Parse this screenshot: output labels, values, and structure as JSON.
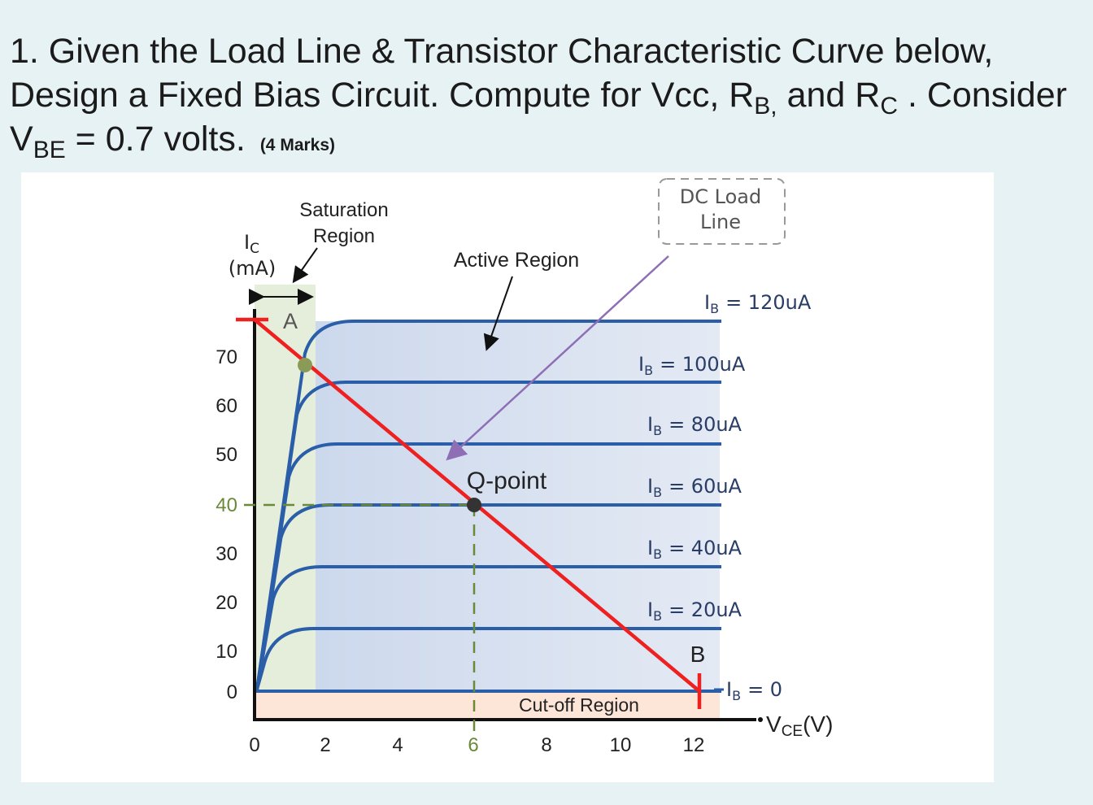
{
  "question": {
    "line1": "1. Given the Load Line & Transistor Characteristic Curve below,",
    "line2_a": "Design a Fixed Bias Circuit. Compute for Vcc, R",
    "line2_sub_b": "B,",
    "line2_b": " and R",
    "line2_sub_c": "C",
    "line2_c": " . Consider",
    "line3_a": "V",
    "line3_sub": "BE",
    "line3_b": " = 0.7 volts.",
    "marks": "(4 Marks)"
  },
  "figure": {
    "saturation": [
      "Saturation",
      "Region"
    ],
    "ic_symbol": "I",
    "ic_sub": "C",
    "ic_unit": "(mA)",
    "point_a": "A",
    "active_region": "Active Region",
    "dc_load_line": [
      "DC Load",
      "Line"
    ],
    "ib_symbol": "I",
    "ib_sub": "B",
    "curve_labels": [
      "= 120uA",
      "= 100uA",
      "= 80uA",
      "= 60uA",
      "= 40uA",
      "= 20uA",
      "= 0"
    ],
    "y_ticks": [
      "70",
      "60",
      "50",
      "40",
      "30",
      "20",
      "10",
      "0"
    ],
    "x_ticks": [
      "0",
      "2",
      "4",
      "6",
      "8",
      "10",
      "12"
    ],
    "q_point": "Q-point",
    "point_b": "B",
    "cutoff_region": "Cut-off Region",
    "vce_symbol": "V",
    "vce_sub": "CE",
    "vce_unit": "(V)"
  }
}
